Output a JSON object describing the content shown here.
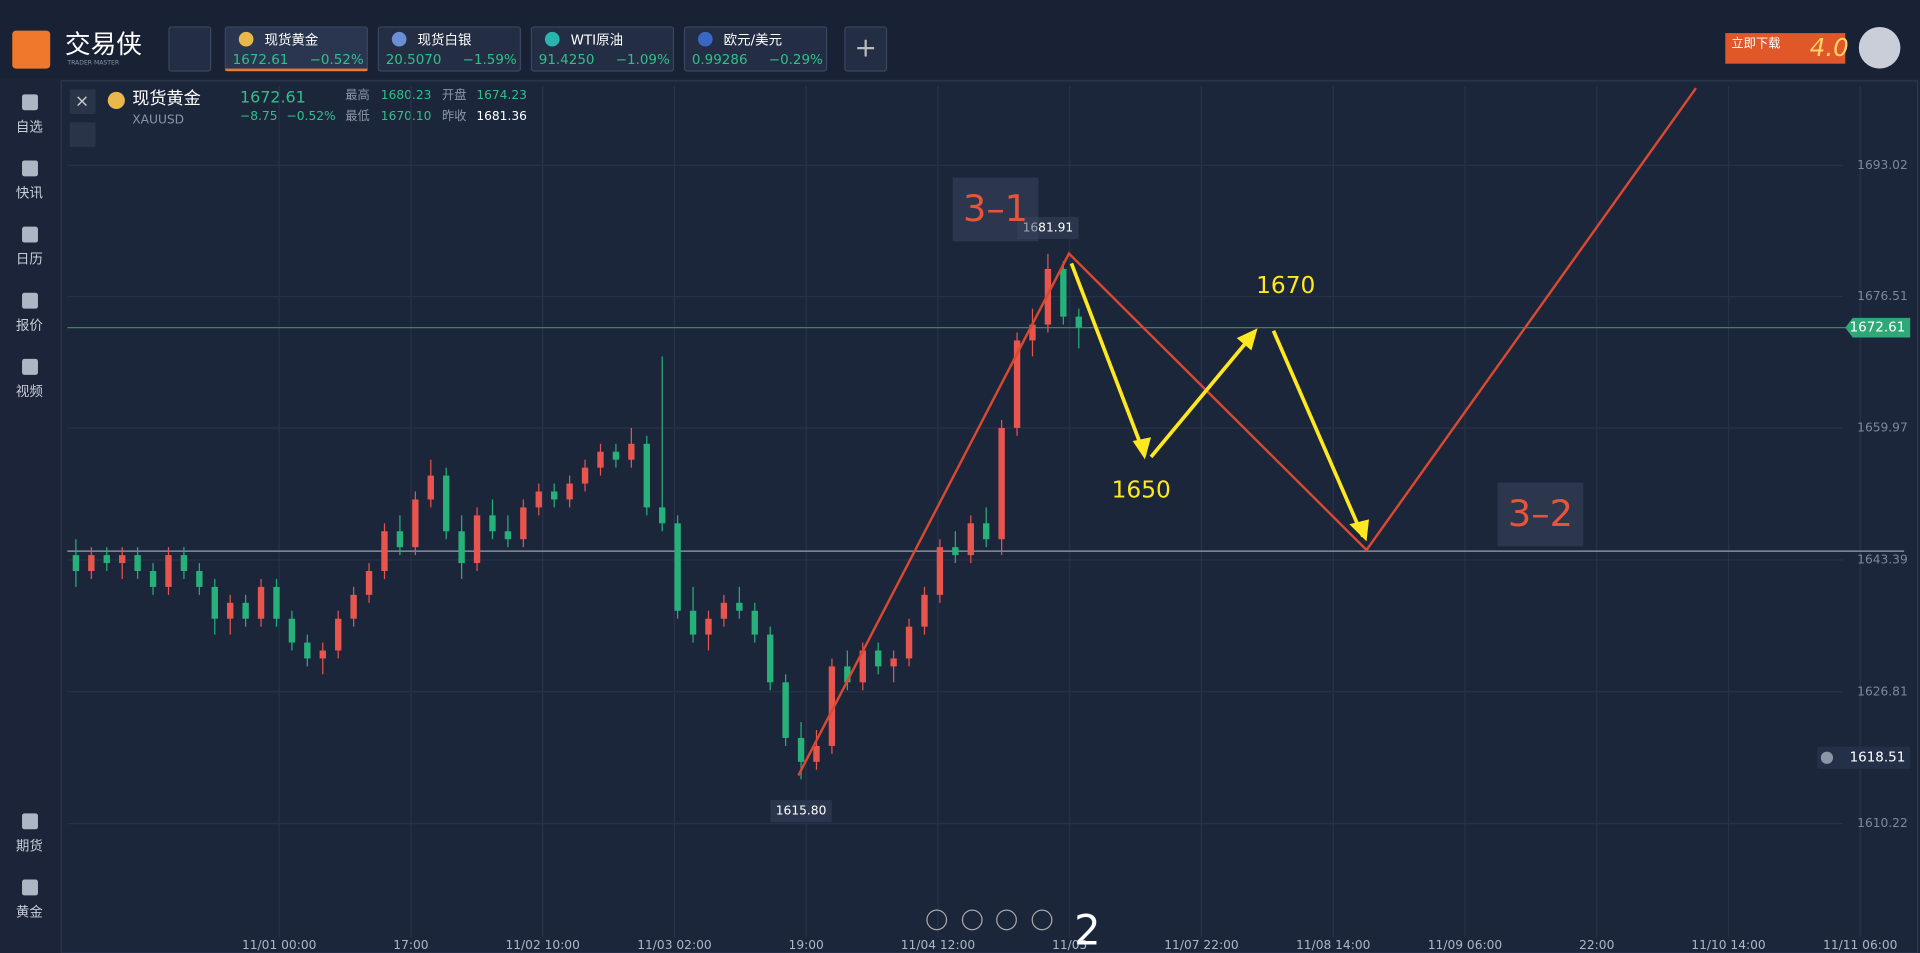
{
  "app": {
    "logo_text": "交易侠",
    "logo_sub": "TRADER MASTER",
    "download": "立即下载",
    "download_badge": "4.0"
  },
  "tabs": [
    {
      "name": "现货黄金",
      "price": "1672.61",
      "change": "−0.52%",
      "icon_color": "#e8b84a"
    },
    {
      "name": "现货白银",
      "price": "20.5070",
      "change": "−1.59%",
      "icon_color": "#6b8fd6"
    },
    {
      "name": "WTI原油",
      "price": "91.4250",
      "change": "−1.09%",
      "icon_color": "#2bb3b0"
    },
    {
      "name": "欧元/美元",
      "price": "0.99286",
      "change": "−0.29%",
      "icon_color": "#3a66c4"
    }
  ],
  "sidebar": {
    "top": [
      "自选",
      "快讯",
      "日历",
      "报价",
      "视频"
    ],
    "bottom": [
      "期货",
      "黄金"
    ]
  },
  "header": {
    "name": "现货黄金",
    "symbol": "XAUUSD",
    "price": "1672.61",
    "change": "−8.75",
    "change_pct": "−0.52%",
    "high_label": "最高",
    "high": "1680.23",
    "open_label": "开盘",
    "open": "1674.23",
    "low_label": "最低",
    "low": "1670.10",
    "prev_label": "昨收",
    "prev": "1681.36"
  },
  "chart_data": {
    "type": "candlestick",
    "up_color": "#e8544e",
    "down_color": "#26b07a",
    "ylim": [
      1593.95,
      1703.04
    ],
    "yticks": [
      1610.22,
      1626.81,
      1643.39,
      1659.97,
      1676.51,
      1693.02
    ],
    "grid": true,
    "x_labels": [
      "11/01 00:00",
      "17:00",
      "11/02 10:00",
      "11/03 02:00",
      "19:00",
      "11/04 12:00",
      "11/05 ",
      "11/07 22:00",
      "11/08 14:00",
      "11/09 06:00",
      "22:00",
      "11/10 14:00",
      "11/11 06:00"
    ],
    "last_price": 1672.61,
    "alert_price": 1618.51,
    "support_line": 1644.5,
    "high_label": "1681.91",
    "low_label": "1615.80",
    "annotations": [
      "3–1",
      "3–2",
      "1650",
      "1670",
      "2"
    ],
    "open": [
      1644,
      1642,
      1644,
      1643,
      1644,
      1642,
      1640,
      1644,
      1642,
      1640,
      1636,
      1638,
      1636,
      1640,
      1636,
      1633,
      1631,
      1632,
      1636,
      1639,
      1642,
      1647,
      1645,
      1651,
      1654,
      1647,
      1643,
      1649,
      1647,
      1646,
      1650,
      1652,
      1651,
      1653,
      1655,
      1657,
      1656,
      1658,
      1650,
      1648,
      1637,
      1634,
      1636,
      1638,
      1637,
      1634,
      1628,
      1621,
      1618,
      1620,
      1630,
      1628,
      1632,
      1630,
      1631,
      1635,
      1639,
      1645,
      1644,
      1648,
      1646,
      1660,
      1671,
      1673,
      1680,
      1674
    ],
    "high": [
      1646,
      1645,
      1645,
      1645,
      1645,
      1643,
      1645,
      1645,
      1643,
      1641,
      1639,
      1639,
      1641,
      1641,
      1637,
      1634,
      1633,
      1637,
      1640,
      1643,
      1648,
      1649,
      1652,
      1656,
      1655,
      1649,
      1650,
      1651,
      1649,
      1651,
      1653,
      1653,
      1654,
      1656,
      1658,
      1658,
      1660,
      1659,
      1669,
      1649,
      1640,
      1637,
      1639,
      1640,
      1638,
      1635,
      1629,
      1623,
      1622,
      1631,
      1632,
      1633,
      1633,
      1632,
      1636,
      1640,
      1646,
      1647,
      1649,
      1650,
      1661,
      1672,
      1675,
      1681.91,
      1681,
      1675
    ],
    "low": [
      1640,
      1641,
      1642,
      1641,
      1641,
      1639,
      1639,
      1641,
      1639,
      1634,
      1634,
      1635,
      1635,
      1635,
      1632,
      1630,
      1629,
      1631,
      1635,
      1638,
      1641,
      1644,
      1644,
      1650,
      1646,
      1641,
      1642,
      1646,
      1645,
      1645,
      1649,
      1650,
      1650,
      1652,
      1654,
      1655,
      1655,
      1649,
      1647,
      1636,
      1633,
      1632,
      1635,
      1636,
      1633,
      1627,
      1620,
      1615.8,
      1617,
      1619,
      1627,
      1627,
      1629,
      1628,
      1630,
      1634,
      1638,
      1643,
      1643,
      1645,
      1644,
      1659,
      1669,
      1672,
      1673,
      1670
    ],
    "close": [
      1642,
      1644,
      1643,
      1644,
      1642,
      1640,
      1644,
      1642,
      1640,
      1636,
      1638,
      1636,
      1640,
      1636,
      1633,
      1631,
      1632,
      1636,
      1639,
      1642,
      1647,
      1645,
      1651,
      1654,
      1647,
      1643,
      1649,
      1647,
      1646,
      1650,
      1652,
      1651,
      1653,
      1655,
      1657,
      1656,
      1658,
      1650,
      1648,
      1637,
      1634,
      1636,
      1638,
      1637,
      1634,
      1628,
      1621,
      1618,
      1620,
      1630,
      1628,
      1632,
      1630,
      1631,
      1635,
      1639,
      1645,
      1644,
      1648,
      1646,
      1660,
      1671,
      1673,
      1680,
      1674,
      1672.61
    ]
  }
}
